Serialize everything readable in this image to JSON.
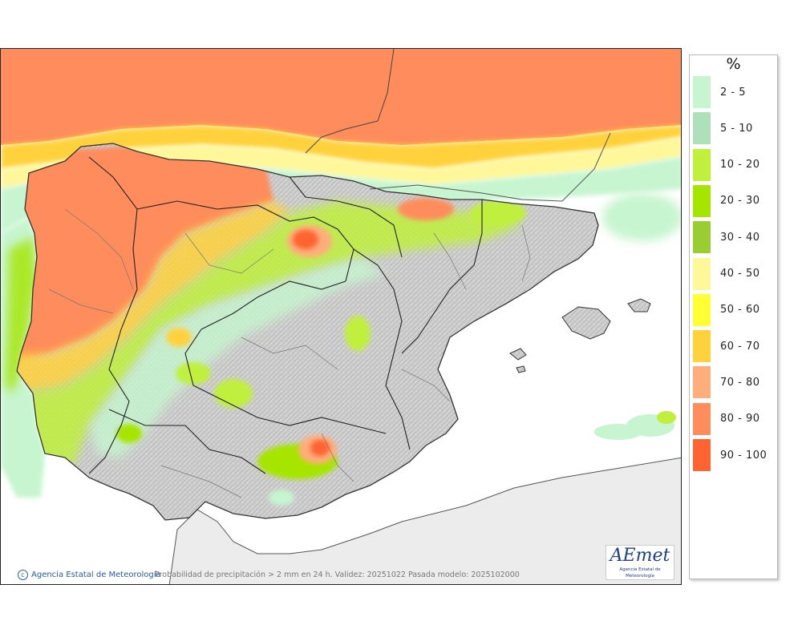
{
  "map": {
    "credit": "Agencia Estatal de Meteorología",
    "caption": "Probabilidad de precipitación > 2 mm en 24 h. Validez: 20251022 Pasada modelo: 2025102000",
    "logo_text": "AEmet",
    "logo_subtext": "Agencia Estatal de Meteorología"
  },
  "legend": {
    "title": "%",
    "classes": [
      {
        "label": "2 - 5",
        "color": "#c6f5cf"
      },
      {
        "label": "5 - 10",
        "color": "#aee0b9"
      },
      {
        "label": "10 - 20",
        "color": "#c0f03c"
      },
      {
        "label": "20 - 30",
        "color": "#a6e500"
      },
      {
        "label": "30 - 40",
        "color": "#9acd32"
      },
      {
        "label": "40 - 50",
        "color": "#fff79a"
      },
      {
        "label": "50 - 60",
        "color": "#ffff33"
      },
      {
        "label": "60 - 70",
        "color": "#ffd23c"
      },
      {
        "label": "70 - 80",
        "color": "#ffad7a"
      },
      {
        "label": "80 - 90",
        "color": "#ff8c5c"
      },
      {
        "label": "90 - 100",
        "color": "#ff6332"
      }
    ]
  }
}
